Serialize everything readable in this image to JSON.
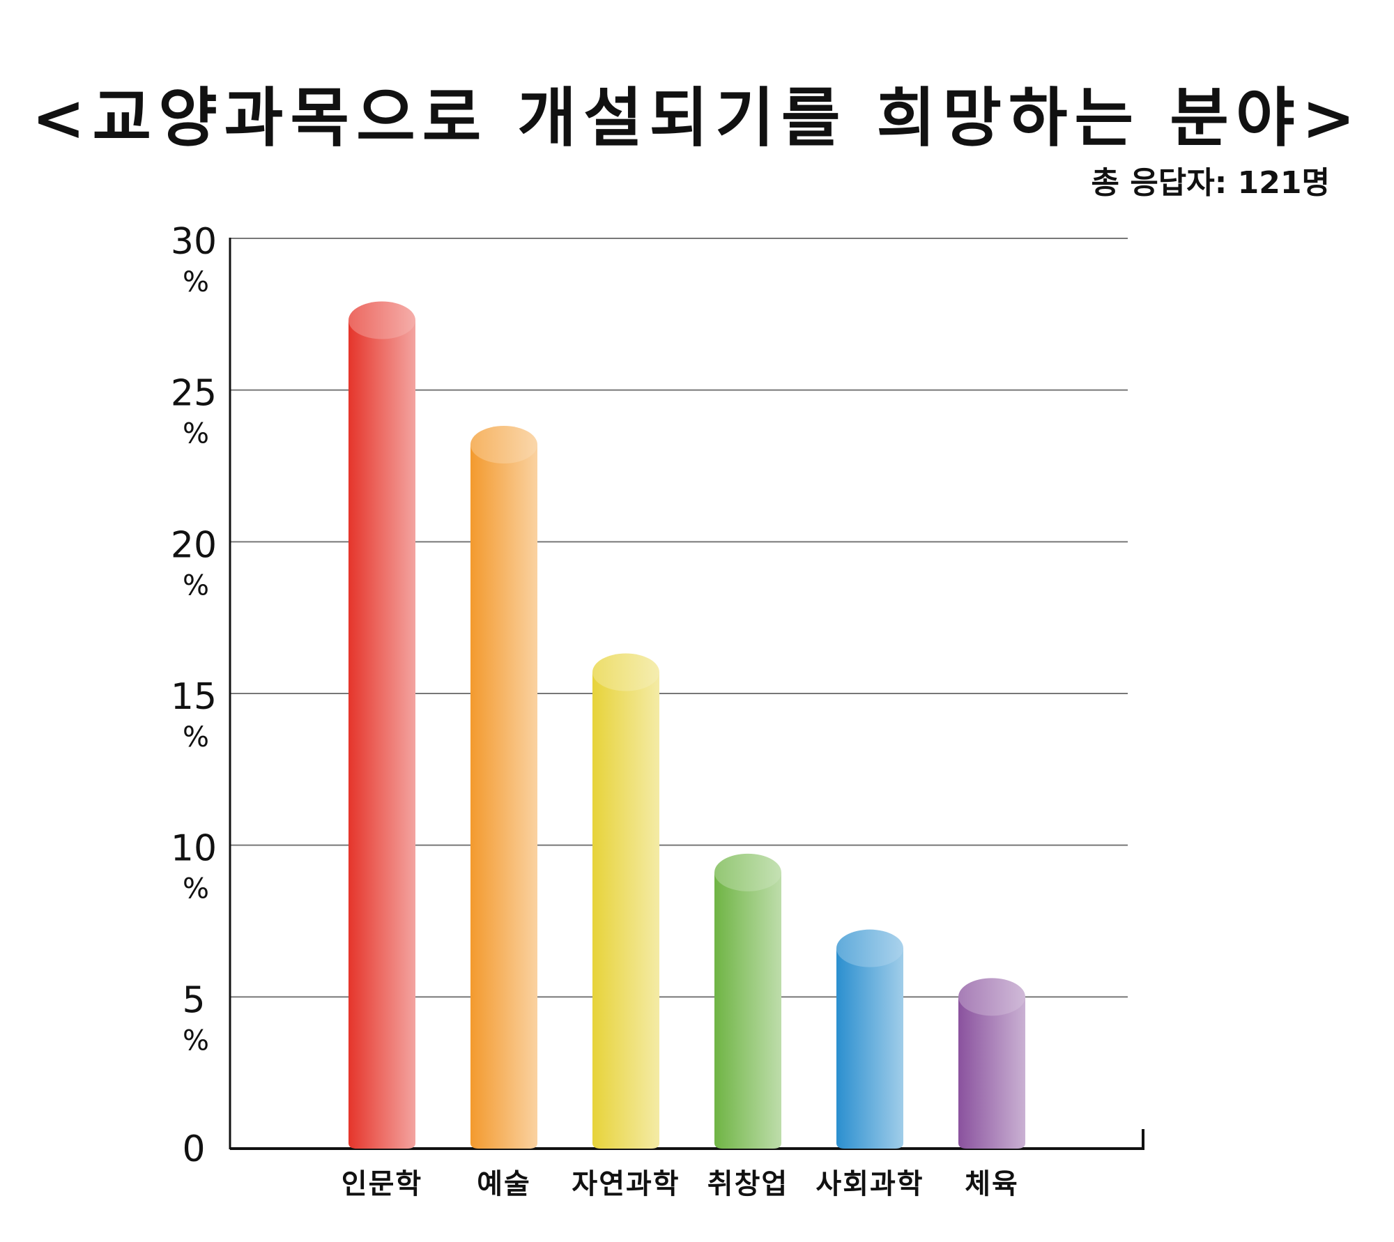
{
  "chart_data": {
    "type": "bar",
    "title": "<교양과목으로 개설되기를 희망하는 분야>",
    "subtitle": "총 응답자: 121명",
    "categories": [
      "인문학",
      "예술",
      "자연과학",
      "취창업",
      "사회과학",
      "체육"
    ],
    "values": [
      27.3,
      23.2,
      15.7,
      9.1,
      6.6,
      5.0
    ],
    "y_ticks": [
      0,
      5,
      10,
      15,
      20,
      25,
      30
    ],
    "y_unit": "%",
    "ylim": [
      0,
      30
    ],
    "grid": true,
    "colors": [
      "#e5352b",
      "#f39a2e",
      "#e7d33a",
      "#6fb444",
      "#2b8fcf",
      "#8a529e"
    ]
  }
}
